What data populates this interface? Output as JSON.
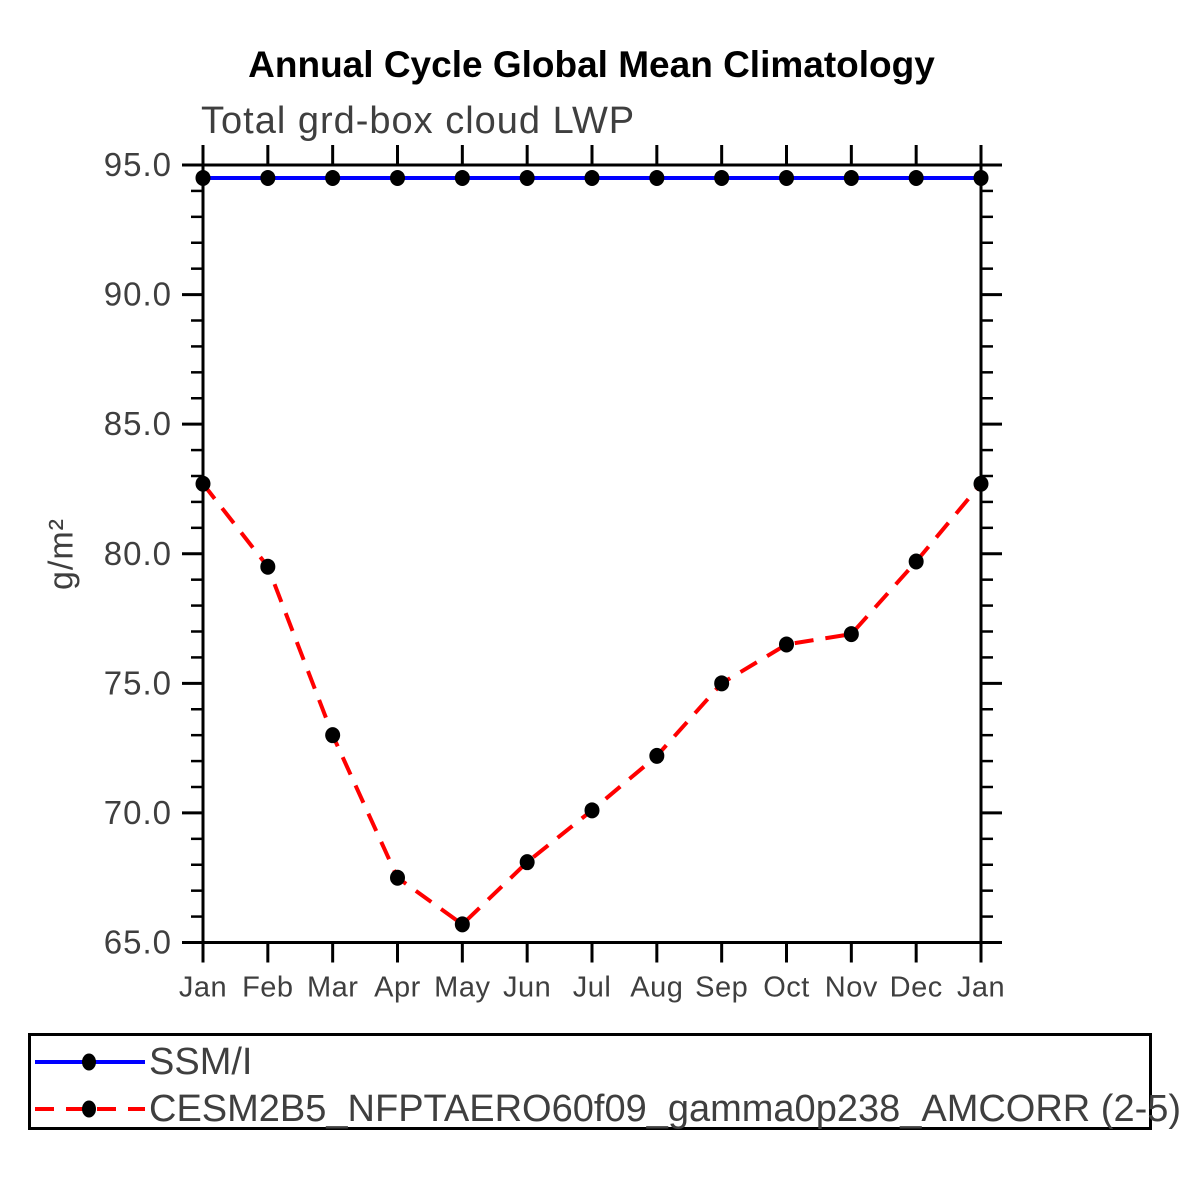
{
  "page": {
    "background_color": "#ffffff",
    "text_color": "#3f3f3f",
    "frame_color": "#000000"
  },
  "chart_data": {
    "type": "line",
    "title": "Annual Cycle Global Mean Climatology",
    "subtitle": "Total grd-box cloud LWP",
    "ylabel": "g/m²",
    "xlabel": "",
    "categories": [
      "Jan",
      "Feb",
      "Mar",
      "Apr",
      "May",
      "Jun",
      "Jul",
      "Aug",
      "Sep",
      "Oct",
      "Nov",
      "Dec",
      "Jan"
    ],
    "ylim": [
      65.0,
      95.0
    ],
    "ytick_major_interval": 5.0,
    "ytick_minor_interval": 1.0,
    "ytick_labels": [
      "95.0",
      "90.0",
      "85.0",
      "80.0",
      "75.0",
      "70.0",
      "65.0"
    ],
    "grid": false,
    "legend_position": "bottom-left-box",
    "series": [
      {
        "name": "SSM/I",
        "color": "#0000ff",
        "line_style": "solid",
        "marker": "filled-circle",
        "marker_color": "#000000",
        "values": [
          94.5,
          94.5,
          94.5,
          94.5,
          94.5,
          94.5,
          94.5,
          94.5,
          94.5,
          94.5,
          94.5,
          94.5,
          94.5
        ]
      },
      {
        "name": "CESM2B5_NFPTAERO60f09_gamma0p238_AMCORR (2-5)",
        "color": "#ff0000",
        "line_style": "dashed",
        "marker": "filled-circle",
        "marker_color": "#000000",
        "values": [
          82.7,
          79.5,
          73.0,
          67.5,
          65.7,
          68.1,
          70.1,
          72.2,
          75.0,
          76.5,
          76.9,
          79.7,
          82.7
        ]
      }
    ]
  }
}
